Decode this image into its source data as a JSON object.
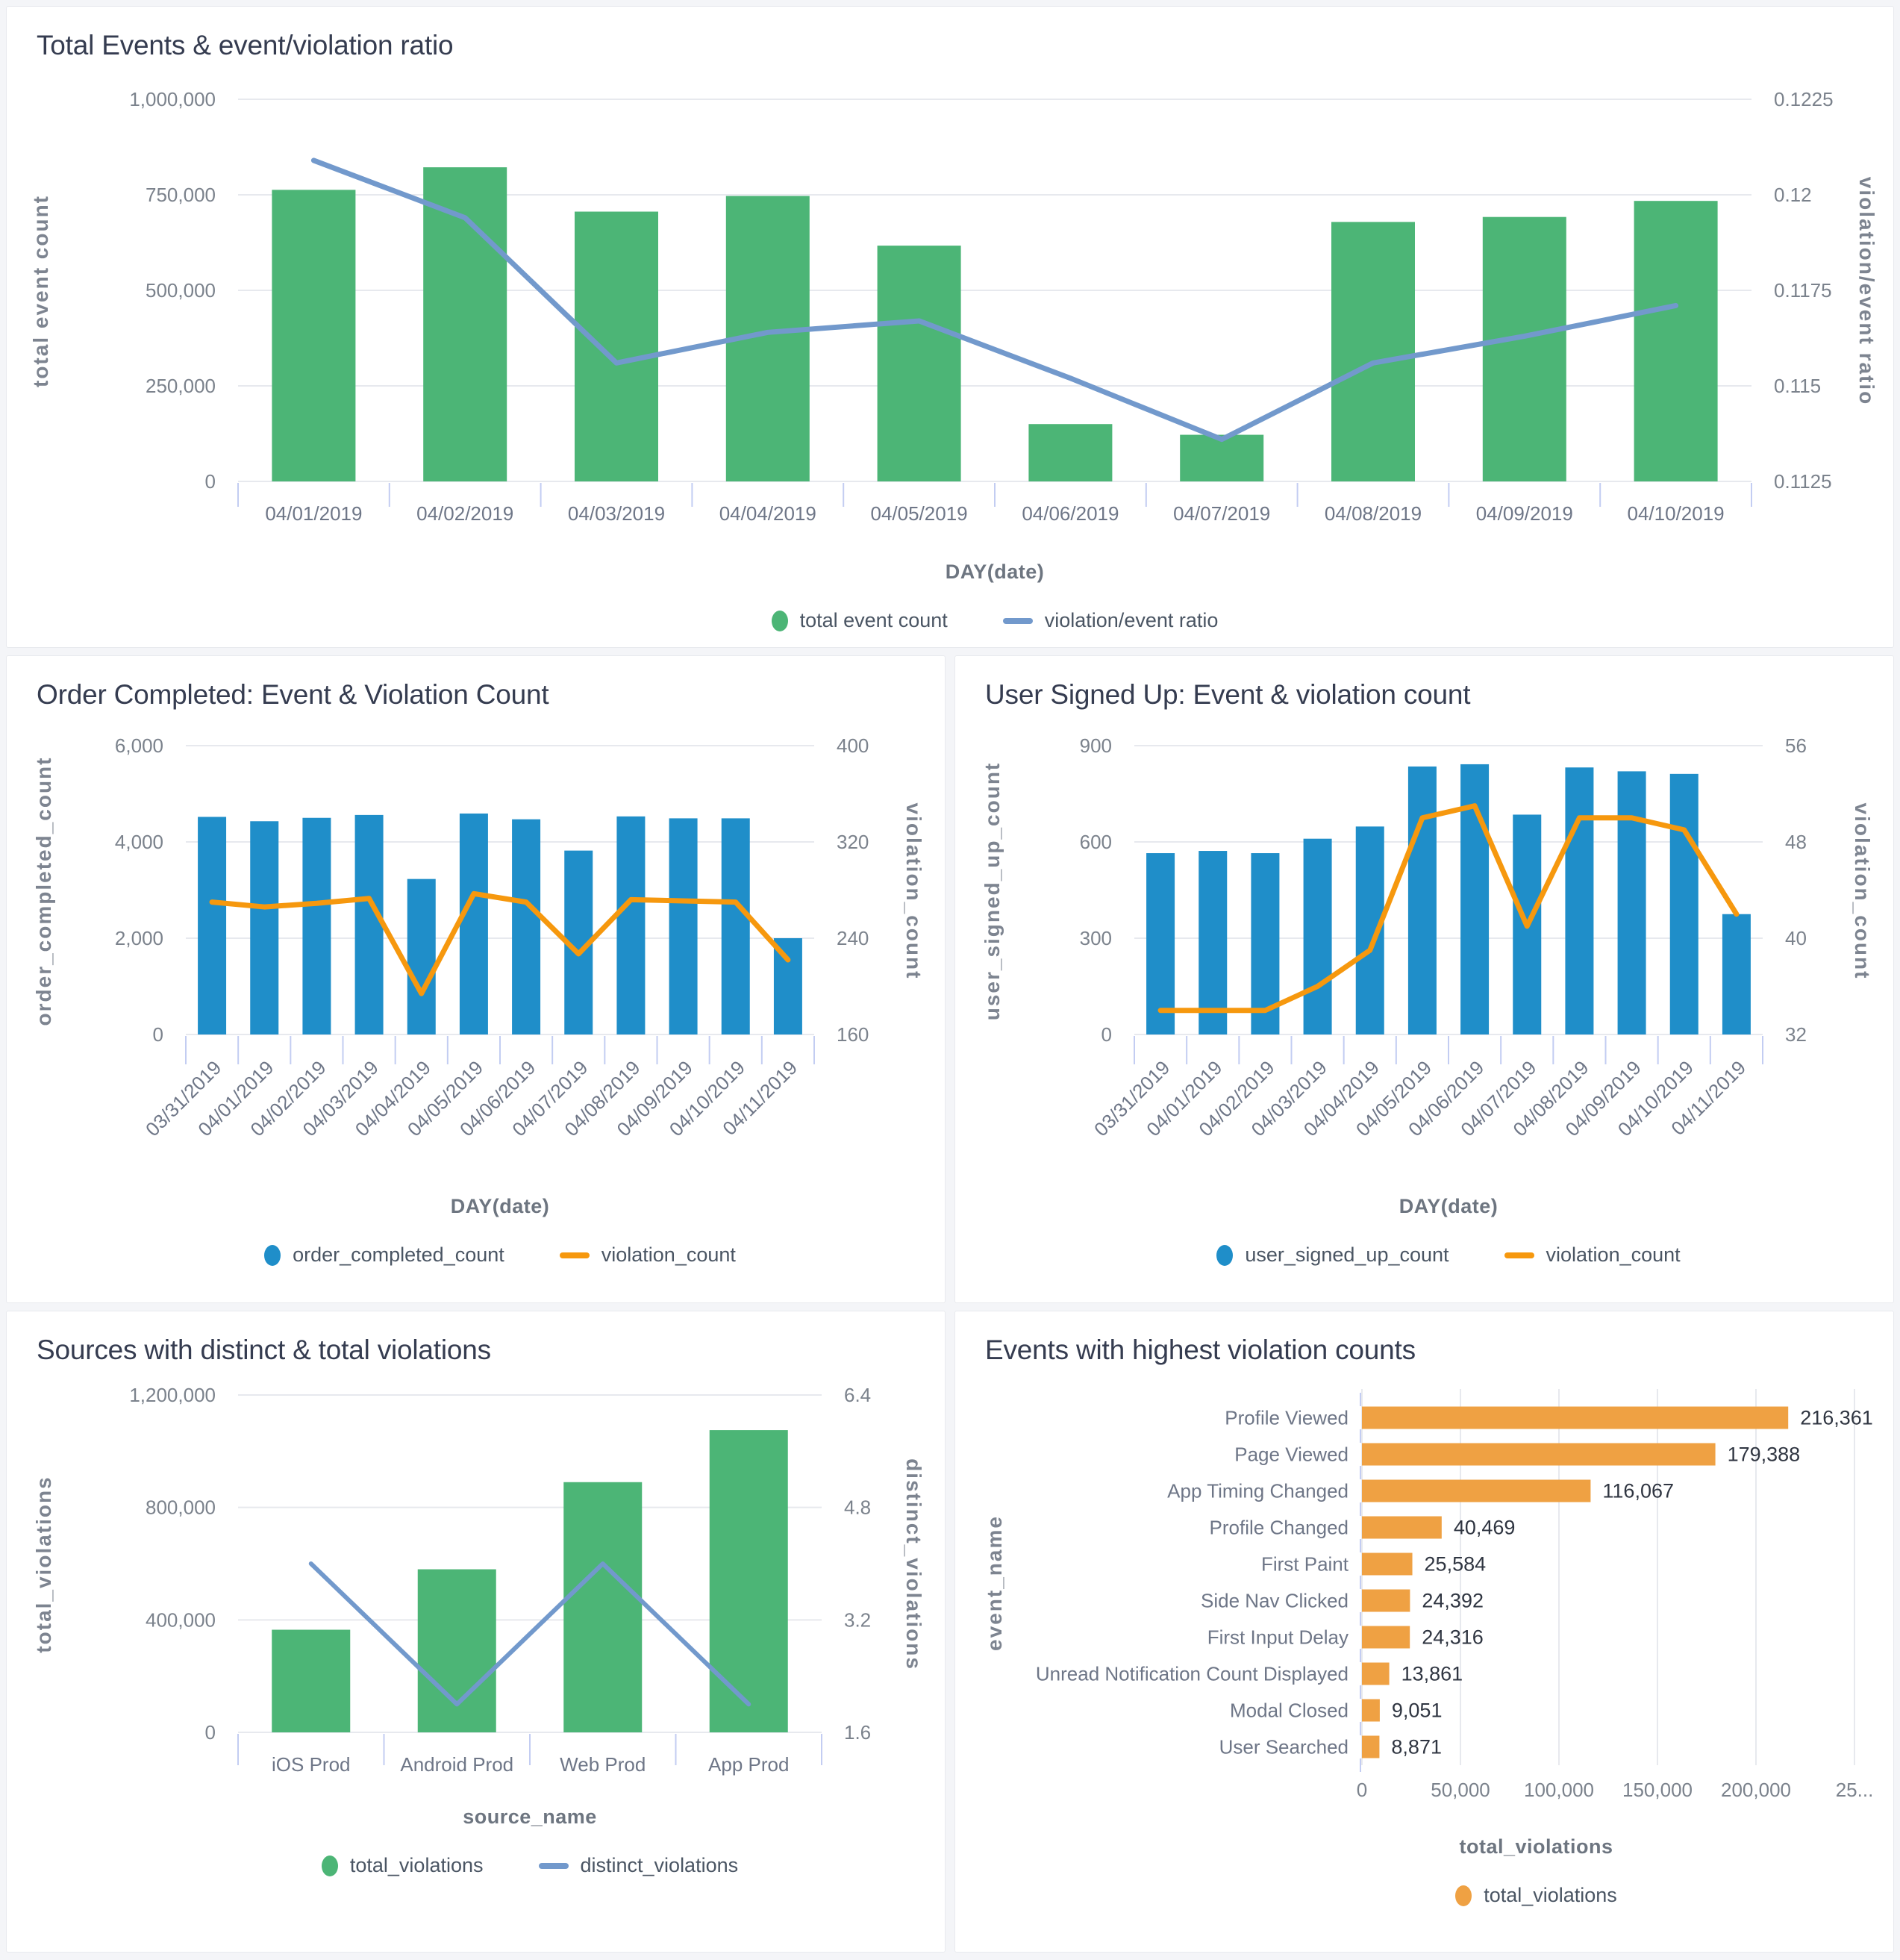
{
  "theme": {
    "background": "#f4f5f8",
    "card_background": "#ffffff",
    "card_border": "#e8eaee",
    "grid_color": "#e7e9ee",
    "axis_tick_color": "#c3cdf2",
    "title_color": "#353c50",
    "green": "#4cb576",
    "blue": "#1f8ec9",
    "orange_line": "#f6980e",
    "orange_bar": "#efa143",
    "steel_blue": "#7299cc"
  },
  "chart_data": [
    {
      "id": "total-events",
      "type": "bar+line",
      "title": "Total Events & event/violation ratio",
      "xlabel": "DAY(date)",
      "ylabel_left": "total event count",
      "ylabel_right": "violation/event ratio",
      "categories": [
        "04/01/2019",
        "04/02/2019",
        "04/03/2019",
        "04/04/2019",
        "04/05/2019",
        "04/06/2019",
        "04/07/2019",
        "04/08/2019",
        "04/09/2019",
        "04/10/2019"
      ],
      "series": [
        {
          "name": "total event count",
          "type": "bar",
          "axis": "left",
          "color": "#4cb576",
          "values": [
            763000,
            822000,
            706000,
            747000,
            617000,
            150000,
            122000,
            679000,
            692000,
            734000
          ]
        },
        {
          "name": "violation/event ratio",
          "type": "line",
          "axis": "right",
          "color": "#7299cc",
          "values": [
            0.1209,
            0.1194,
            0.1156,
            0.1164,
            0.1167,
            0.1152,
            0.1136,
            0.1156,
            0.1163,
            0.1171
          ]
        }
      ],
      "left_axis": {
        "min": 0,
        "max": 1000000,
        "tick_labels": [
          "0",
          "250,000",
          "500,000",
          "750,000",
          "1,000,000"
        ]
      },
      "right_axis": {
        "min": 0.1125,
        "max": 0.1225,
        "tick_labels": [
          "0.1125",
          "0.115",
          "0.1175",
          "0.12",
          "0.1225"
        ]
      },
      "grid": true,
      "legend_position": "bottom"
    },
    {
      "id": "order-completed",
      "type": "bar+line",
      "title": "Order Completed: Event & Violation Count",
      "xlabel": "DAY(date)",
      "ylabel_left": "order_completed_count",
      "ylabel_right": "violation_count",
      "categories": [
        "03/31/2019",
        "04/01/2019",
        "04/02/2019",
        "04/03/2019",
        "04/04/2019",
        "04/05/2019",
        "04/06/2019",
        "04/07/2019",
        "04/08/2019",
        "04/09/2019",
        "04/10/2019",
        "04/11/2019"
      ],
      "series": [
        {
          "name": "order_completed_count",
          "type": "bar",
          "axis": "left",
          "color": "#1f8ec9",
          "values": [
            4520,
            4430,
            4500,
            4560,
            3230,
            4590,
            4470,
            3820,
            4530,
            4490,
            4490,
            2000
          ]
        },
        {
          "name": "violation_count",
          "type": "line",
          "axis": "right",
          "color": "#f6980e",
          "values": [
            270,
            266,
            269,
            273,
            194,
            277,
            270,
            227,
            272,
            271,
            270,
            222
          ]
        }
      ],
      "left_axis": {
        "min": 0,
        "max": 6000,
        "tick_labels": [
          "0",
          "2,000",
          "4,000",
          "6,000"
        ]
      },
      "right_axis": {
        "min": 160,
        "max": 400,
        "tick_labels": [
          "160",
          "240",
          "320",
          "400"
        ]
      },
      "grid": true,
      "legend_position": "bottom"
    },
    {
      "id": "user-signed-up",
      "type": "bar+line",
      "title": "User Signed Up: Event & violation count",
      "xlabel": "DAY(date)",
      "ylabel_left": "user_signed_up_count",
      "ylabel_right": "violation_count",
      "categories": [
        "03/31/2019",
        "04/01/2019",
        "04/02/2019",
        "04/03/2019",
        "04/04/2019",
        "04/05/2019",
        "04/06/2019",
        "04/07/2019",
        "04/08/2019",
        "04/09/2019",
        "04/10/2019",
        "04/11/2019"
      ],
      "series": [
        {
          "name": "user_signed_up_count",
          "type": "bar",
          "axis": "left",
          "color": "#1f8ec9",
          "values": [
            565,
            572,
            565,
            610,
            648,
            835,
            842,
            685,
            832,
            820,
            812,
            375
          ]
        },
        {
          "name": "violation_count",
          "type": "line",
          "axis": "right",
          "color": "#f6980e",
          "values": [
            34,
            34,
            34,
            36,
            39,
            50,
            51,
            41,
            50,
            50,
            49,
            42
          ]
        }
      ],
      "left_axis": {
        "min": 0,
        "max": 900,
        "tick_labels": [
          "0",
          "300",
          "600",
          "900"
        ]
      },
      "right_axis": {
        "min": 32,
        "max": 56,
        "tick_labels": [
          "32",
          "40",
          "48",
          "56"
        ]
      },
      "grid": true,
      "legend_position": "bottom"
    },
    {
      "id": "sources",
      "type": "bar+line",
      "title": "Sources with distinct & total violations",
      "xlabel": "source_name",
      "ylabel_left": "total_violations",
      "ylabel_right": "distinct_violations",
      "categories": [
        "iOS Prod",
        "Android Prod",
        "Web Prod",
        "App Prod"
      ],
      "series": [
        {
          "name": "total_violations",
          "type": "bar",
          "axis": "left",
          "color": "#4cb576",
          "values": [
            365000,
            580000,
            890000,
            1075000
          ]
        },
        {
          "name": "distinct_violations",
          "type": "line",
          "axis": "right",
          "color": "#7299cc",
          "values": [
            4,
            2,
            4,
            2
          ]
        }
      ],
      "left_axis": {
        "min": 0,
        "max": 1200000,
        "tick_labels": [
          "0",
          "400,000",
          "800,000",
          "1,200,000"
        ]
      },
      "right_axis": {
        "min": 1.6,
        "max": 6.4,
        "tick_labels": [
          "1.6",
          "3.2",
          "4.8",
          "6.4"
        ]
      },
      "grid": true,
      "legend_position": "bottom"
    },
    {
      "id": "top-violations",
      "type": "horizontal-bar",
      "title": "Events with highest violation counts",
      "xlabel": "total_violations",
      "ylabel": "event_name",
      "series_name": "total_violations",
      "color": "#efa143",
      "categories": [
        "Profile Viewed",
        "Page Viewed",
        "App Timing Changed",
        "Profile Changed",
        "First Paint",
        "Side Nav Clicked",
        "First Input Delay",
        "Unread Notification Count Displayed",
        "Modal Closed",
        "User Searched"
      ],
      "values": [
        216361,
        179388,
        116067,
        40469,
        25584,
        24392,
        24316,
        13861,
        9051,
        8871
      ],
      "value_labels": [
        "216,361",
        "179,388",
        "116,067",
        "40,469",
        "25,584",
        "24,392",
        "24,316",
        "13,861",
        "9,051",
        "8,871"
      ],
      "x_axis": {
        "min": 0,
        "max": 250000,
        "tick_labels": [
          "0",
          "50,000",
          "100,000",
          "150,000",
          "200,000",
          "25..."
        ]
      },
      "grid": true,
      "legend_position": "bottom"
    }
  ]
}
